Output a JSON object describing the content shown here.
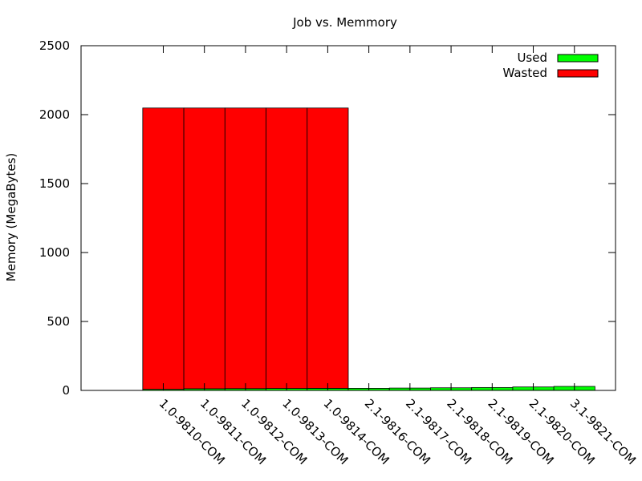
{
  "chart_data": {
    "type": "bar",
    "stacked": true,
    "title": "Job vs. Memmory",
    "xlabel": "",
    "ylabel": "Memory (MegaBytes)",
    "ylim": [
      0,
      2500
    ],
    "yticks": [
      0,
      500,
      1000,
      1500,
      2000,
      2500
    ],
    "grid": false,
    "legend_position": "top-right",
    "categories": [
      "1.0-9810-COM",
      "1.0-9811-COM",
      "1.0-9812-COM",
      "1.0-9813-COM",
      "1.0-9814-COM",
      "2.1-9816-COM",
      "2.1-9817-COM",
      "2.1-9818-COM",
      "2.1-9819-COM",
      "2.1-9820-COM",
      "3.1-9821-COM"
    ],
    "series": [
      {
        "name": "Used",
        "color": "#00ff00",
        "values": [
          8,
          12,
          13,
          14,
          15,
          15,
          17,
          19,
          21,
          25,
          29
        ]
      },
      {
        "name": "Wasted",
        "color": "#ff0000",
        "values": [
          2040,
          2036,
          2035,
          2034,
          2033,
          0,
          0,
          0,
          0,
          0,
          0
        ]
      }
    ]
  }
}
